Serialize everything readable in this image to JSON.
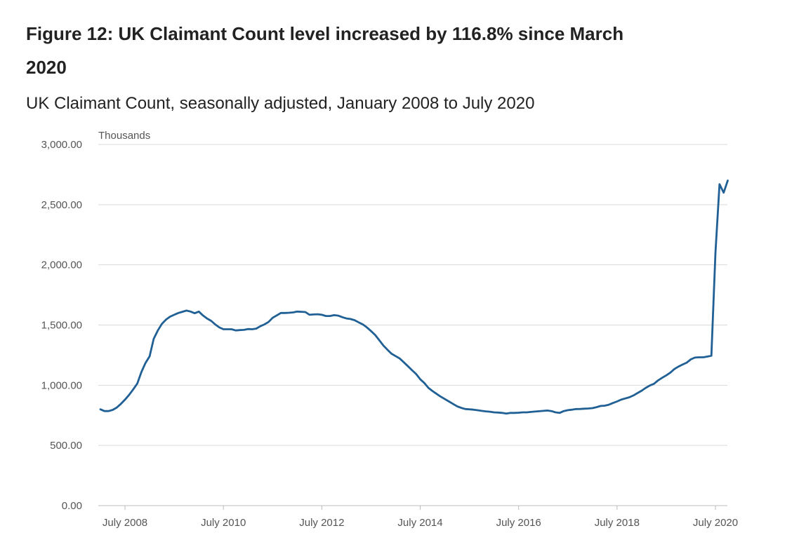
{
  "chart_data": {
    "type": "line",
    "title": "Figure 12: UK Claimant Count level increased by 116.8% since March 2020",
    "subtitle": "UK Claimant Count, seasonally adjusted, January 2008 to July 2020",
    "ylabel": "Thousands",
    "xlabel": "",
    "ylim": [
      0,
      3000
    ],
    "yticks": [
      0,
      500,
      1000,
      1500,
      2000,
      2500,
      3000
    ],
    "ytick_labels": [
      "0.00",
      "500.00",
      "1,000.00",
      "1,500.00",
      "2,000.00",
      "2,500.00",
      "3,000.00"
    ],
    "xlim": [
      "January 2008",
      "July 2020"
    ],
    "xticks": [
      "July 2008",
      "July 2010",
      "July 2012",
      "July 2014",
      "July 2016",
      "July 2018",
      "July 2020"
    ],
    "grid": true,
    "series": [
      {
        "name": "UK Claimant Count",
        "color": "#206095",
        "points": [
          [
            0,
            800
          ],
          [
            1,
            785
          ],
          [
            2,
            785
          ],
          [
            3,
            795
          ],
          [
            4,
            815
          ],
          [
            5,
            845
          ],
          [
            6,
            880
          ],
          [
            7,
            920
          ],
          [
            8,
            965
          ],
          [
            9,
            1015
          ],
          [
            10,
            1110
          ],
          [
            11,
            1185
          ],
          [
            12,
            1240
          ],
          [
            13,
            1385
          ],
          [
            14,
            1455
          ],
          [
            15,
            1510
          ],
          [
            16,
            1545
          ],
          [
            17,
            1570
          ],
          [
            18,
            1585
          ],
          [
            19,
            1600
          ],
          [
            20,
            1610
          ],
          [
            21,
            1620
          ],
          [
            22,
            1612
          ],
          [
            23,
            1598
          ],
          [
            24,
            1612
          ],
          [
            25,
            1580
          ],
          [
            26,
            1555
          ],
          [
            27,
            1535
          ],
          [
            28,
            1505
          ],
          [
            29,
            1480
          ],
          [
            30,
            1465
          ],
          [
            31,
            1465
          ],
          [
            32,
            1465
          ],
          [
            33,
            1455
          ],
          [
            34,
            1458
          ],
          [
            35,
            1460
          ],
          [
            36,
            1467
          ],
          [
            37,
            1465
          ],
          [
            38,
            1470
          ],
          [
            39,
            1490
          ],
          [
            40,
            1505
          ],
          [
            41,
            1525
          ],
          [
            42,
            1560
          ],
          [
            43,
            1580
          ],
          [
            44,
            1600
          ],
          [
            45,
            1600
          ],
          [
            46,
            1602
          ],
          [
            47,
            1605
          ],
          [
            48,
            1612
          ],
          [
            49,
            1610
          ],
          [
            50,
            1608
          ],
          [
            51,
            1585
          ],
          [
            52,
            1588
          ],
          [
            53,
            1590
          ],
          [
            54,
            1585
          ],
          [
            55,
            1575
          ],
          [
            56,
            1575
          ],
          [
            57,
            1582
          ],
          [
            58,
            1578
          ],
          [
            59,
            1565
          ],
          [
            60,
            1555
          ],
          [
            61,
            1550
          ],
          [
            62,
            1540
          ],
          [
            63,
            1522
          ],
          [
            64,
            1505
          ],
          [
            65,
            1480
          ],
          [
            66,
            1450
          ],
          [
            67,
            1418
          ],
          [
            68,
            1375
          ],
          [
            69,
            1330
          ],
          [
            70,
            1295
          ],
          [
            71,
            1262
          ],
          [
            72,
            1242
          ],
          [
            73,
            1222
          ],
          [
            74,
            1190
          ],
          [
            75,
            1158
          ],
          [
            76,
            1125
          ],
          [
            77,
            1093
          ],
          [
            78,
            1050
          ],
          [
            79,
            1018
          ],
          [
            80,
            978
          ],
          [
            81,
            952
          ],
          [
            82,
            928
          ],
          [
            83,
            905
          ],
          [
            84,
            885
          ],
          [
            85,
            865
          ],
          [
            86,
            845
          ],
          [
            87,
            825
          ],
          [
            88,
            812
          ],
          [
            89,
            802
          ],
          [
            90,
            800
          ],
          [
            91,
            797
          ],
          [
            92,
            792
          ],
          [
            93,
            787
          ],
          [
            94,
            783
          ],
          [
            95,
            780
          ],
          [
            96,
            775
          ],
          [
            97,
            773
          ],
          [
            98,
            770
          ],
          [
            99,
            765
          ],
          [
            100,
            770
          ],
          [
            101,
            770
          ],
          [
            102,
            772
          ],
          [
            103,
            775
          ],
          [
            104,
            775
          ],
          [
            105,
            778
          ],
          [
            106,
            781
          ],
          [
            107,
            784
          ],
          [
            108,
            787
          ],
          [
            109,
            790
          ],
          [
            110,
            785
          ],
          [
            111,
            775
          ],
          [
            112,
            770
          ],
          [
            113,
            785
          ],
          [
            114,
            793
          ],
          [
            115,
            797
          ],
          [
            116,
            802
          ],
          [
            117,
            803
          ],
          [
            118,
            805
          ],
          [
            119,
            807
          ],
          [
            120,
            810
          ],
          [
            121,
            818
          ],
          [
            122,
            828
          ],
          [
            123,
            830
          ],
          [
            124,
            838
          ],
          [
            125,
            852
          ],
          [
            126,
            865
          ],
          [
            127,
            880
          ],
          [
            128,
            890
          ],
          [
            129,
            900
          ],
          [
            130,
            915
          ],
          [
            131,
            935
          ],
          [
            132,
            955
          ],
          [
            133,
            978
          ],
          [
            134,
            998
          ],
          [
            135,
            1012
          ],
          [
            136,
            1040
          ],
          [
            137,
            1062
          ],
          [
            138,
            1082
          ],
          [
            139,
            1105
          ],
          [
            140,
            1135
          ],
          [
            141,
            1155
          ],
          [
            142,
            1172
          ],
          [
            143,
            1188
          ],
          [
            144,
            1215
          ],
          [
            145,
            1230
          ],
          [
            146,
            1232
          ],
          [
            147,
            1232
          ],
          [
            148,
            1238
          ],
          [
            149,
            1245
          ],
          [
            150,
            2100
          ],
          [
            151,
            2670
          ],
          [
            152,
            2600
          ],
          [
            153,
            2700
          ]
        ]
      }
    ]
  }
}
